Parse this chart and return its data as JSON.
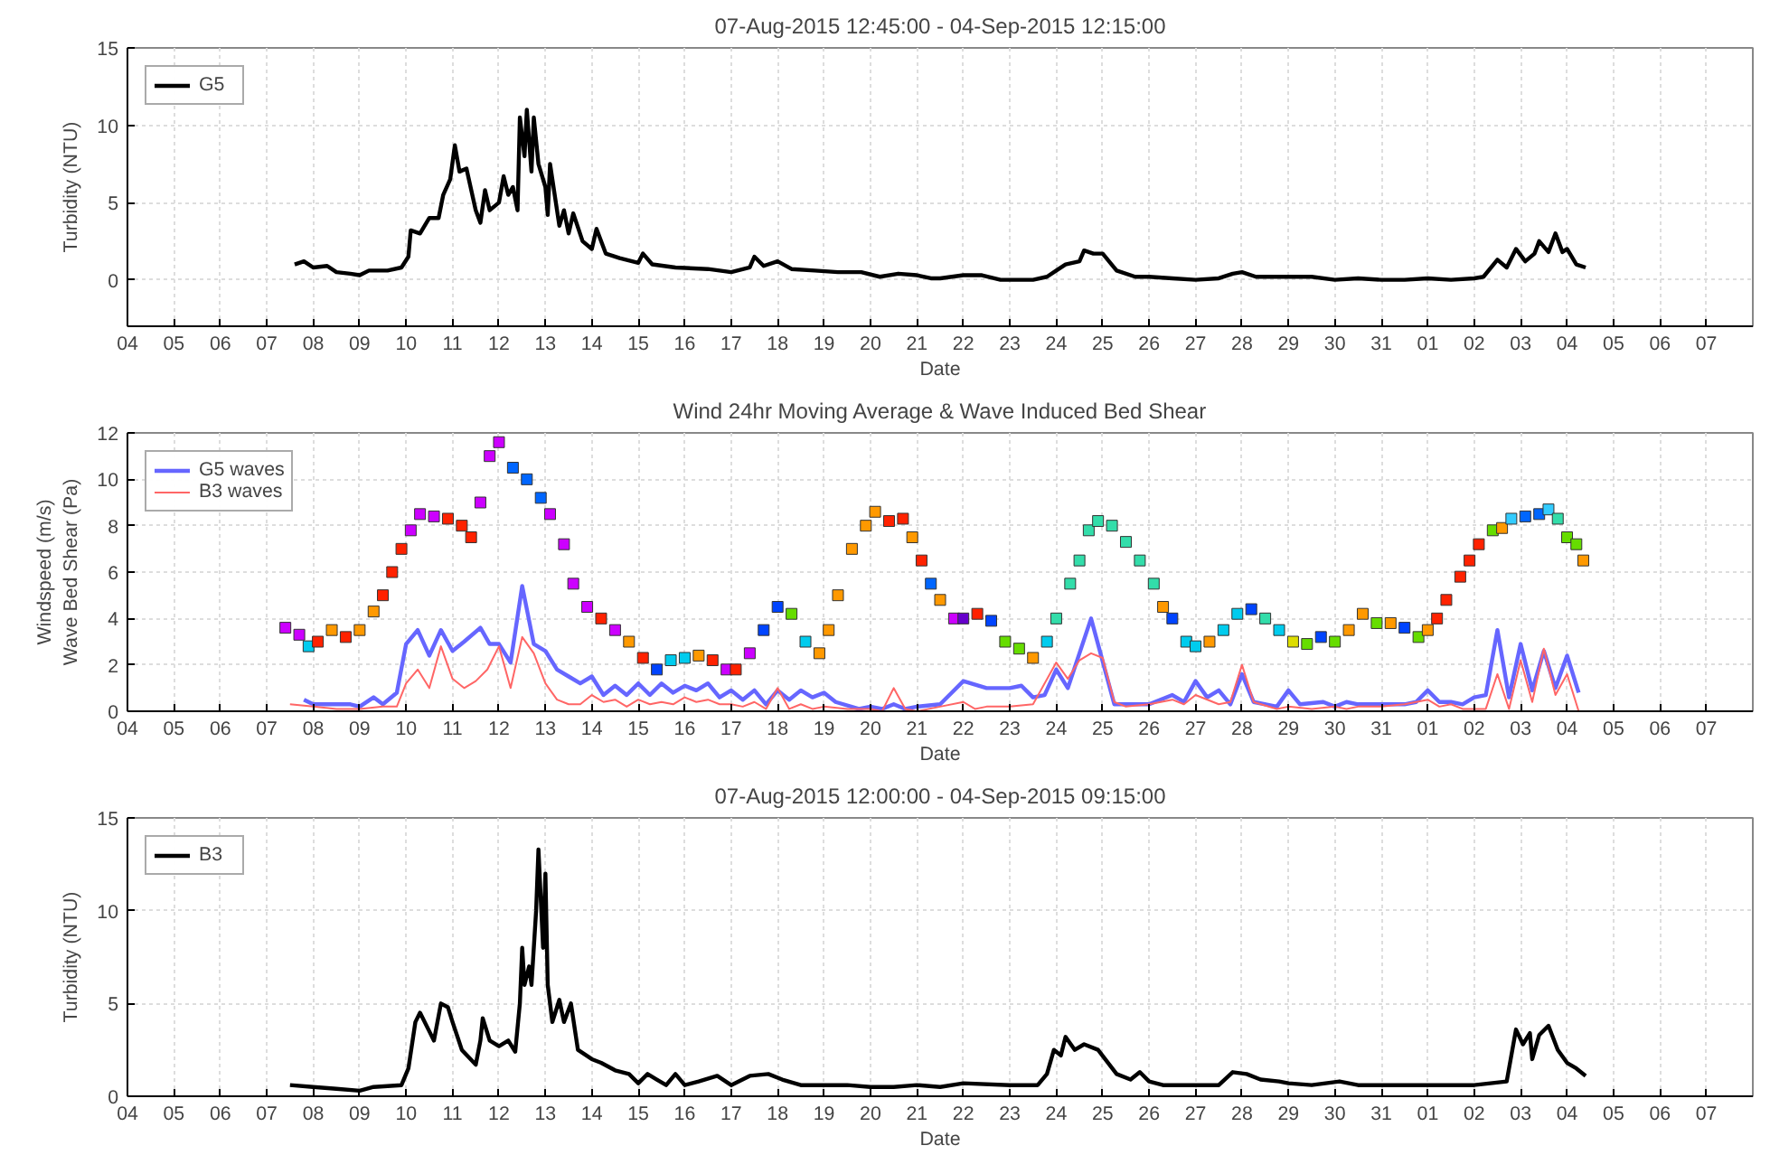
{
  "chart_data": [
    {
      "type": "line",
      "title": "07-Aug-2015 12:45:00 - 04-Sep-2015 12:15:00",
      "xlabel": "Date",
      "ylabel": "Turbidity (NTU)",
      "xlim": [
        "2015-08-04",
        "2015-09-08"
      ],
      "ylim": [
        -3,
        15
      ],
      "yticks": [
        0,
        5,
        10,
        15
      ],
      "xticks": [
        {
          "value": "2015-08-04",
          "label": "04"
        },
        {
          "value": "2015-08-05",
          "label": "05"
        },
        {
          "value": "2015-08-06",
          "label": "06"
        },
        {
          "value": "2015-08-07",
          "label": "07"
        },
        {
          "value": "2015-08-08",
          "label": "08"
        },
        {
          "value": "2015-08-09",
          "label": "09"
        },
        {
          "value": "2015-08-10",
          "label": "10"
        },
        {
          "value": "2015-08-11",
          "label": "11"
        },
        {
          "value": "2015-08-12",
          "label": "12"
        },
        {
          "value": "2015-08-13",
          "label": "13"
        },
        {
          "value": "2015-08-14",
          "label": "14"
        },
        {
          "value": "2015-08-15",
          "label": "15"
        },
        {
          "value": "2015-08-16",
          "label": "16"
        },
        {
          "value": "2015-08-17",
          "label": "17"
        },
        {
          "value": "2015-08-18",
          "label": "18"
        },
        {
          "value": "2015-08-19",
          "label": "19"
        },
        {
          "value": "2015-08-20",
          "label": "20"
        },
        {
          "value": "2015-08-21",
          "label": "21"
        },
        {
          "value": "2015-08-22",
          "label": "22"
        },
        {
          "value": "2015-08-23",
          "label": "23"
        },
        {
          "value": "2015-08-24",
          "label": "24"
        },
        {
          "value": "2015-08-25",
          "label": "25"
        },
        {
          "value": "2015-08-26",
          "label": "26"
        },
        {
          "value": "2015-08-27",
          "label": "27"
        },
        {
          "value": "2015-08-28",
          "label": "28"
        },
        {
          "value": "2015-08-29",
          "label": "29"
        },
        {
          "value": "2015-08-30",
          "label": "30"
        },
        {
          "value": "2015-08-31",
          "label": "31"
        },
        {
          "value": "2015-09-01",
          "label": "01"
        },
        {
          "value": "2015-09-02",
          "label": "02"
        },
        {
          "value": "2015-09-03",
          "label": "03"
        },
        {
          "value": "2015-09-04",
          "label": "04"
        },
        {
          "value": "2015-09-05",
          "label": "05"
        },
        {
          "value": "2015-09-06",
          "label": "06"
        },
        {
          "value": "2015-09-07",
          "label": "07"
        }
      ],
      "grid": true,
      "legend": "top left",
      "series": [
        {
          "name": "G5",
          "color": "#000000",
          "x": [
            "2015-08-07T14:24",
            "2015-08-07T19:12",
            "2015-08-08T00:00",
            "2015-08-08T07:12",
            "2015-08-08T12:00",
            "2015-08-08T19:12",
            "2015-08-09T00:00",
            "2015-08-09T04:48",
            "2015-08-09T14:24",
            "2015-08-09T21:36",
            "2015-08-10T01:12",
            "2015-08-10T02:24",
            "2015-08-10T07:12",
            "2015-08-10T12:00",
            "2015-08-10T16:48",
            "2015-08-10T19:12",
            "2015-08-10T22:48",
            "2015-08-11T01:12",
            "2015-08-11T03:36",
            "2015-08-11T07:12",
            "2015-08-11T12:00",
            "2015-08-11T14:24",
            "2015-08-11T16:48",
            "2015-08-11T19:12",
            "2015-08-12T00:00",
            "2015-08-12T02:24",
            "2015-08-12T04:48",
            "2015-08-12T07:12",
            "2015-08-12T09:36",
            "2015-08-12T10:48",
            "2015-08-12T13:12",
            "2015-08-12T14:24",
            "2015-08-12T16:48",
            "2015-08-12T18:00",
            "2015-08-12T20:24",
            "2015-08-13T00:00",
            "2015-08-13T01:12",
            "2015-08-13T02:24",
            "2015-08-13T07:12",
            "2015-08-13T09:36",
            "2015-08-13T12:00",
            "2015-08-13T14:24",
            "2015-08-13T19:12",
            "2015-08-14T00:00",
            "2015-08-14T02:24",
            "2015-08-14T07:12",
            "2015-08-14T14:24",
            "2015-08-15T00:00",
            "2015-08-15T02:24",
            "2015-08-15T07:12",
            "2015-08-15T19:12",
            "2015-08-16T12:00",
            "2015-08-17T00:00",
            "2015-08-17T09:36",
            "2015-08-17T12:00",
            "2015-08-17T16:48",
            "2015-08-18T00:00",
            "2015-08-18T07:12",
            "2015-08-18T19:12",
            "2015-08-19T07:12",
            "2015-08-19T19:12",
            "2015-08-20T04:48",
            "2015-08-20T14:24",
            "2015-08-21T00:00",
            "2015-08-21T07:12",
            "2015-08-21T12:00",
            "2015-08-22T00:00",
            "2015-08-22T09:36",
            "2015-08-22T19:12",
            "2015-08-23T12:00",
            "2015-08-23T19:12",
            "2015-08-24T00:00",
            "2015-08-24T04:48",
            "2015-08-24T12:00",
            "2015-08-24T14:24",
            "2015-08-24T19:12",
            "2015-08-25T00:00",
            "2015-08-25T07:12",
            "2015-08-25T16:48",
            "2015-08-26T00:00",
            "2015-08-26T12:00",
            "2015-08-27T00:00",
            "2015-08-27T12:00",
            "2015-08-27T19:12",
            "2015-08-28T00:00",
            "2015-08-28T07:12",
            "2015-08-29T00:00",
            "2015-08-29T12:00",
            "2015-08-30T00:00",
            "2015-08-30T12:00",
            "2015-08-31T00:00",
            "2015-08-31T12:00",
            "2015-09-01T00:00",
            "2015-09-01T12:00",
            "2015-09-02T00:00",
            "2015-09-02T04:48",
            "2015-09-02T12:00",
            "2015-09-02T16:48",
            "2015-09-02T21:36",
            "2015-09-03T02:24",
            "2015-09-03T07:12",
            "2015-09-03T09:36",
            "2015-09-03T14:24",
            "2015-09-03T18:00",
            "2015-09-03T21:36",
            "2015-09-04T00:00",
            "2015-09-04T04:48",
            "2015-09-04T09:36"
          ],
          "values": [
            1.0,
            1.2,
            0.8,
            0.9,
            0.5,
            0.4,
            0.3,
            0.6,
            0.6,
            0.8,
            1.5,
            3.2,
            3.0,
            4.0,
            4.0,
            5.5,
            6.5,
            8.7,
            7.0,
            7.2,
            4.5,
            3.7,
            5.8,
            4.5,
            5.0,
            6.7,
            5.5,
            6.0,
            4.5,
            10.5,
            8.0,
            11.0,
            7.0,
            10.5,
            7.5,
            6.0,
            4.2,
            7.5,
            3.5,
            4.5,
            3.0,
            4.3,
            2.5,
            2.0,
            3.3,
            1.7,
            1.4,
            1.1,
            1.7,
            1.0,
            0.8,
            0.7,
            0.5,
            0.8,
            1.5,
            0.9,
            1.2,
            0.7,
            0.6,
            0.5,
            0.5,
            0.2,
            0.4,
            0.3,
            0.1,
            0.1,
            0.3,
            0.3,
            0.0,
            0.0,
            0.2,
            0.6,
            1.0,
            1.2,
            1.9,
            1.7,
            1.7,
            0.6,
            0.2,
            0.2,
            0.1,
            0.0,
            0.1,
            0.4,
            0.5,
            0.2,
            0.2,
            0.2,
            0.0,
            0.1,
            0.0,
            0.0,
            0.1,
            0.0,
            0.1,
            0.2,
            1.3,
            0.8,
            2.0,
            1.2,
            1.7,
            2.5,
            1.8,
            3.0,
            1.8,
            2.0,
            1.0,
            0.8
          ]
        }
      ]
    },
    {
      "type": "line",
      "title": "Wind 24hr Moving Average & Wave Induced Bed Shear",
      "xlabel": "Date",
      "ylabel": "Windspeed (m/s)\nWave Bed Shear (Pa)",
      "xlim": [
        "2015-08-04",
        "2015-09-08"
      ],
      "ylim": [
        0,
        12
      ],
      "yticks": [
        0,
        2,
        4,
        6,
        8,
        10,
        12
      ],
      "xticks": [
        {
          "value": "2015-08-04",
          "label": "04"
        },
        {
          "value": "2015-08-05",
          "label": "05"
        },
        {
          "value": "2015-08-06",
          "label": "06"
        },
        {
          "value": "2015-08-07",
          "label": "07"
        },
        {
          "value": "2015-08-08",
          "label": "08"
        },
        {
          "value": "2015-08-09",
          "label": "09"
        },
        {
          "value": "2015-08-10",
          "label": "10"
        },
        {
          "value": "2015-08-11",
          "label": "11"
        },
        {
          "value": "2015-08-12",
          "label": "12"
        },
        {
          "value": "2015-08-13",
          "label": "13"
        },
        {
          "value": "2015-08-14",
          "label": "14"
        },
        {
          "value": "2015-08-15",
          "label": "15"
        },
        {
          "value": "2015-08-16",
          "label": "16"
        },
        {
          "value": "2015-08-17",
          "label": "17"
        },
        {
          "value": "2015-08-18",
          "label": "18"
        },
        {
          "value": "2015-08-19",
          "label": "19"
        },
        {
          "value": "2015-08-20",
          "label": "20"
        },
        {
          "value": "2015-08-21",
          "label": "21"
        },
        {
          "value": "2015-08-22",
          "label": "22"
        },
        {
          "value": "2015-08-23",
          "label": "23"
        },
        {
          "value": "2015-08-24",
          "label": "24"
        },
        {
          "value": "2015-08-25",
          "label": "25"
        },
        {
          "value": "2015-08-26",
          "label": "26"
        },
        {
          "value": "2015-08-27",
          "label": "27"
        },
        {
          "value": "2015-08-28",
          "label": "28"
        },
        {
          "value": "2015-08-29",
          "label": "29"
        },
        {
          "value": "2015-08-30",
          "label": "30"
        },
        {
          "value": "2015-08-31",
          "label": "31"
        },
        {
          "value": "2015-09-01",
          "label": "01"
        },
        {
          "value": "2015-09-02",
          "label": "02"
        },
        {
          "value": "2015-09-03",
          "label": "03"
        },
        {
          "value": "2015-09-04",
          "label": "04"
        },
        {
          "value": "2015-09-05",
          "label": "05"
        },
        {
          "value": "2015-09-06",
          "label": "06"
        },
        {
          "value": "2015-09-07",
          "label": "07"
        }
      ],
      "grid": true,
      "legend": "top left",
      "series": [
        {
          "name": "G5 waves",
          "color": "#6666ff",
          "x": [
            "2015-08-07T19:12",
            "2015-08-08T00:00",
            "2015-08-08T12:00",
            "2015-08-08T19:12",
            "2015-08-09T00:00",
            "2015-08-09T07:12",
            "2015-08-09T12:00",
            "2015-08-09T19:12",
            "2015-08-10T00:00",
            "2015-08-10T06:00",
            "2015-08-10T12:00",
            "2015-08-10T18:00",
            "2015-08-11T00:00",
            "2015-08-11T06:00",
            "2015-08-11T14:24",
            "2015-08-11T19:12",
            "2015-08-12T00:00",
            "2015-08-12T06:00",
            "2015-08-12T12:00",
            "2015-08-12T18:00",
            "2015-08-13T00:00",
            "2015-08-13T06:00",
            "2015-08-13T12:00",
            "2015-08-13T18:00",
            "2015-08-14T00:00",
            "2015-08-14T06:00",
            "2015-08-14T12:00",
            "2015-08-14T18:00",
            "2015-08-15T00:00",
            "2015-08-15T06:00",
            "2015-08-15T12:00",
            "2015-08-15T18:00",
            "2015-08-16T00:00",
            "2015-08-16T06:00",
            "2015-08-16T12:00",
            "2015-08-16T18:00",
            "2015-08-17T00:00",
            "2015-08-17T06:00",
            "2015-08-17T12:00",
            "2015-08-17T18:00",
            "2015-08-18T00:00",
            "2015-08-18T06:00",
            "2015-08-18T12:00",
            "2015-08-18T18:00",
            "2015-08-19T00:00",
            "2015-08-19T06:00",
            "2015-08-19T18:00",
            "2015-08-20T00:00",
            "2015-08-20T06:00",
            "2015-08-20T12:00",
            "2015-08-20T18:00",
            "2015-08-21T00:00",
            "2015-08-21T12:00",
            "2015-08-22T00:00",
            "2015-08-22T12:00",
            "2015-08-23T00:00",
            "2015-08-23T06:00",
            "2015-08-23T12:00",
            "2015-08-23T18:00",
            "2015-08-24T00:00",
            "2015-08-24T06:00",
            "2015-08-24T18:00",
            "2015-08-25T06:00",
            "2015-08-25T12:00",
            "2015-08-26T00:00",
            "2015-08-26T12:00",
            "2015-08-26T18:00",
            "2015-08-27T00:00",
            "2015-08-27T06:00",
            "2015-08-27T12:00",
            "2015-08-27T18:00",
            "2015-08-28T00:00",
            "2015-08-28T06:00",
            "2015-08-28T18:00",
            "2015-08-29T00:00",
            "2015-08-29T06:00",
            "2015-08-29T18:00",
            "2015-08-30T00:00",
            "2015-08-30T06:00",
            "2015-08-30T12:00",
            "2015-08-31T00:00",
            "2015-08-31T12:00",
            "2015-08-31T18:00",
            "2015-09-01T00:00",
            "2015-09-01T06:00",
            "2015-09-01T12:00",
            "2015-09-01T18:00",
            "2015-09-02T00:00",
            "2015-09-02T06:00",
            "2015-09-02T12:00",
            "2015-09-02T18:00",
            "2015-09-03T00:00",
            "2015-09-03T06:00",
            "2015-09-03T12:00",
            "2015-09-03T18:00",
            "2015-09-04T00:00",
            "2015-09-04T06:00"
          ],
          "values": [
            0.5,
            0.3,
            0.3,
            0.3,
            0.2,
            0.6,
            0.3,
            0.8,
            2.9,
            3.5,
            2.4,
            3.5,
            2.6,
            3.0,
            3.6,
            2.9,
            2.9,
            2.1,
            5.4,
            2.9,
            2.6,
            1.8,
            1.5,
            1.2,
            1.5,
            0.7,
            1.1,
            0.7,
            1.2,
            0.7,
            1.2,
            0.8,
            1.1,
            0.9,
            1.2,
            0.6,
            0.9,
            0.5,
            0.9,
            0.3,
            0.9,
            0.5,
            0.9,
            0.6,
            0.8,
            0.4,
            0.1,
            0.2,
            0.1,
            0.3,
            0.1,
            0.2,
            0.3,
            1.3,
            1.0,
            1.0,
            1.1,
            0.6,
            0.7,
            1.8,
            1.0,
            4.0,
            0.3,
            0.3,
            0.3,
            0.7,
            0.4,
            1.3,
            0.6,
            0.9,
            0.3,
            1.6,
            0.4,
            0.2,
            0.9,
            0.3,
            0.4,
            0.2,
            0.4,
            0.3,
            0.3,
            0.3,
            0.4,
            0.9,
            0.4,
            0.4,
            0.3,
            0.6,
            0.7,
            3.5,
            0.6,
            2.9,
            0.9,
            2.6,
            1.0,
            2.4,
            0.8
          ]
        },
        {
          "name": "B3 waves",
          "color": "#ff6666",
          "x": [
            "2015-08-07T12:00",
            "2015-08-08T00:00",
            "2015-08-08T12:00",
            "2015-08-09T00:00",
            "2015-08-09T12:00",
            "2015-08-09T19:12",
            "2015-08-10T00:00",
            "2015-08-10T06:00",
            "2015-08-10T12:00",
            "2015-08-10T18:00",
            "2015-08-11T00:00",
            "2015-08-11T06:00",
            "2015-08-11T12:00",
            "2015-08-11T18:00",
            "2015-08-12T00:00",
            "2015-08-12T06:00",
            "2015-08-12T12:00",
            "2015-08-12T18:00",
            "2015-08-13T00:00",
            "2015-08-13T06:00",
            "2015-08-13T12:00",
            "2015-08-13T18:00",
            "2015-08-14T00:00",
            "2015-08-14T06:00",
            "2015-08-14T12:00",
            "2015-08-14T18:00",
            "2015-08-15T00:00",
            "2015-08-15T06:00",
            "2015-08-15T12:00",
            "2015-08-15T18:00",
            "2015-08-16T00:00",
            "2015-08-16T06:00",
            "2015-08-16T12:00",
            "2015-08-16T18:00",
            "2015-08-17T00:00",
            "2015-08-17T06:00",
            "2015-08-17T12:00",
            "2015-08-17T18:00",
            "2015-08-18T00:00",
            "2015-08-18T06:00",
            "2015-08-18T12:00",
            "2015-08-18T18:00",
            "2015-08-19T00:00",
            "2015-08-19T12:00",
            "2015-08-20T00:00",
            "2015-08-20T06:00",
            "2015-08-20T12:00",
            "2015-08-20T18:00",
            "2015-08-21T00:00",
            "2015-08-21T12:00",
            "2015-08-22T00:00",
            "2015-08-22T06:00",
            "2015-08-22T12:00",
            "2015-08-23T00:00",
            "2015-08-23T12:00",
            "2015-08-24T00:00",
            "2015-08-24T06:00",
            "2015-08-24T12:00",
            "2015-08-24T18:00",
            "2015-08-25T00:00",
            "2015-08-25T06:00",
            "2015-08-25T12:00",
            "2015-08-26T00:00",
            "2015-08-26T12:00",
            "2015-08-26T18:00",
            "2015-08-27T00:00",
            "2015-08-27T12:00",
            "2015-08-27T18:00",
            "2015-08-28T00:00",
            "2015-08-28T06:00",
            "2015-08-28T18:00",
            "2015-08-29T00:00",
            "2015-08-29T12:00",
            "2015-08-30T00:00",
            "2015-08-30T06:00",
            "2015-08-30T12:00",
            "2015-08-31T00:00",
            "2015-08-31T12:00",
            "2015-09-01T00:00",
            "2015-09-01T06:00",
            "2015-09-01T12:00",
            "2015-09-01T18:00",
            "2015-09-02T00:00",
            "2015-09-02T06:00",
            "2015-09-02T12:00",
            "2015-09-02T18:00",
            "2015-09-03T00:00",
            "2015-09-03T06:00",
            "2015-09-03T12:00",
            "2015-09-03T18:00",
            "2015-09-04T00:00",
            "2015-09-04T06:00"
          ],
          "values": [
            0.3,
            0.2,
            0.1,
            0.1,
            0.2,
            0.2,
            1.2,
            1.8,
            1.0,
            2.8,
            1.4,
            1.0,
            1.3,
            1.8,
            2.8,
            1.0,
            3.2,
            2.5,
            1.2,
            0.5,
            0.3,
            0.3,
            0.7,
            0.4,
            0.5,
            0.2,
            0.5,
            0.3,
            0.4,
            0.3,
            0.6,
            0.4,
            0.5,
            0.3,
            0.3,
            0.2,
            0.4,
            0.1,
            1.0,
            0.1,
            0.3,
            0.1,
            0.2,
            0.1,
            0.1,
            0.0,
            1.0,
            0.1,
            0.0,
            0.2,
            0.4,
            0.1,
            0.2,
            0.2,
            0.3,
            2.1,
            1.4,
            2.2,
            2.5,
            2.3,
            0.4,
            0.2,
            0.3,
            0.5,
            0.3,
            0.7,
            0.3,
            0.4,
            2.0,
            0.4,
            0.1,
            0.2,
            0.1,
            0.2,
            0.1,
            0.2,
            0.2,
            0.3,
            0.5,
            0.2,
            0.3,
            0.1,
            0.1,
            0.1,
            1.6,
            0.1,
            2.2,
            0.4,
            2.7,
            0.7,
            1.6,
            0.0
          ]
        },
        {
          "type": "scatter",
          "marker": "square",
          "x": [
            "2015-08-07T09:36",
            "2015-08-07T16:48",
            "2015-08-07T21:36",
            "2015-08-08T02:24",
            "2015-08-08T09:36",
            "2015-08-08T16:48",
            "2015-08-09T00:00",
            "2015-08-09T07:12",
            "2015-08-09T12:00",
            "2015-08-09T16:48",
            "2015-08-09T21:36",
            "2015-08-10T02:24",
            "2015-08-10T07:12",
            "2015-08-10T14:24",
            "2015-08-10T21:36",
            "2015-08-11T04:48",
            "2015-08-11T09:36",
            "2015-08-11T14:24",
            "2015-08-11T19:12",
            "2015-08-12T00:00",
            "2015-08-12T07:12",
            "2015-08-12T14:24",
            "2015-08-12T21:36",
            "2015-08-13T02:24",
            "2015-08-13T09:36",
            "2015-08-13T14:24",
            "2015-08-13T21:36",
            "2015-08-14T04:48",
            "2015-08-14T12:00",
            "2015-08-14T19:12",
            "2015-08-15T02:24",
            "2015-08-15T09:36",
            "2015-08-15T16:48",
            "2015-08-16T00:00",
            "2015-08-16T07:12",
            "2015-08-16T14:24",
            "2015-08-16T21:36",
            "2015-08-17T02:24",
            "2015-08-17T09:36",
            "2015-08-17T16:48",
            "2015-08-18T00:00",
            "2015-08-18T07:12",
            "2015-08-18T14:24",
            "2015-08-18T21:36",
            "2015-08-19T02:24",
            "2015-08-19T07:12",
            "2015-08-19T14:24",
            "2015-08-19T21:36",
            "2015-08-20T02:24",
            "2015-08-20T09:36",
            "2015-08-20T16:48",
            "2015-08-20T21:36",
            "2015-08-21T02:24",
            "2015-08-21T07:12",
            "2015-08-21T12:00",
            "2015-08-21T19:12",
            "2015-08-22T00:00",
            "2015-08-22T07:12",
            "2015-08-22T14:24",
            "2015-08-22T21:36",
            "2015-08-23T04:48",
            "2015-08-23T12:00",
            "2015-08-23T19:12",
            "2015-08-24T00:00",
            "2015-08-24T07:12",
            "2015-08-24T12:00",
            "2015-08-24T16:48",
            "2015-08-24T21:36",
            "2015-08-25T04:48",
            "2015-08-25T12:00",
            "2015-08-25T19:12",
            "2015-08-26T02:24",
            "2015-08-26T07:12",
            "2015-08-26T12:00",
            "2015-08-26T19:12",
            "2015-08-27T00:00",
            "2015-08-27T07:12",
            "2015-08-27T14:24",
            "2015-08-27T21:36",
            "2015-08-28T04:48",
            "2015-08-28T12:00",
            "2015-08-28T19:12",
            "2015-08-29T02:24",
            "2015-08-29T09:36",
            "2015-08-29T16:48",
            "2015-08-30T00:00",
            "2015-08-30T07:12",
            "2015-08-30T14:24",
            "2015-08-30T21:36",
            "2015-08-31T04:48",
            "2015-08-31T12:00",
            "2015-08-31T19:12",
            "2015-09-01T00:00",
            "2015-09-01T04:48",
            "2015-09-01T09:36",
            "2015-09-01T16:48",
            "2015-09-01T21:36",
            "2015-09-02T02:24",
            "2015-09-02T09:36",
            "2015-09-02T14:24",
            "2015-09-02T19:12",
            "2015-09-03T02:24",
            "2015-09-03T09:36",
            "2015-09-03T14:24",
            "2015-09-03T19:12",
            "2015-09-04T00:00",
            "2015-09-04T04:48",
            "2015-09-04T08:24"
          ],
          "values": [
            3.6,
            3.3,
            2.8,
            3.0,
            3.5,
            3.2,
            3.5,
            4.3,
            5.0,
            6.0,
            7.0,
            7.8,
            8.5,
            8.4,
            8.3,
            8.0,
            7.5,
            9.0,
            11.0,
            11.6,
            10.5,
            10.0,
            9.2,
            8.5,
            7.2,
            5.5,
            4.5,
            4.0,
            3.5,
            3.0,
            2.3,
            1.8,
            2.2,
            2.3,
            2.4,
            2.2,
            1.8,
            1.8,
            2.5,
            3.5,
            4.5,
            4.2,
            3.0,
            2.5,
            3.5,
            5.0,
            7.0,
            8.0,
            8.6,
            8.2,
            8.3,
            7.5,
            6.5,
            5.5,
            4.8,
            4.0,
            4.0,
            4.2,
            3.9,
            3.0,
            2.7,
            2.3,
            3.0,
            4.0,
            5.5,
            6.5,
            7.8,
            8.2,
            8.0,
            7.3,
            6.5,
            5.5,
            4.5,
            4.0,
            3.0,
            2.8,
            3.0,
            3.5,
            4.2,
            4.4,
            4.0,
            3.5,
            3.0,
            2.9,
            3.2,
            3.0,
            3.5,
            4.2,
            3.8,
            3.8,
            3.6,
            3.2,
            3.5,
            4.0,
            4.8,
            5.8,
            6.5,
            7.2,
            7.8,
            7.9,
            8.3,
            8.4,
            8.5,
            8.7,
            8.3,
            7.5,
            7.2,
            6.5
          ],
          "colors": [
            "#cc00ff",
            "#cc00ff",
            "#00ccee",
            "#ff2200",
            "#ff9900",
            "#ff2200",
            "#ff9900",
            "#ff9900",
            "#ff2200",
            "#ff2200",
            "#ff2200",
            "#cc00ff",
            "#cc00ff",
            "#cc00ff",
            "#ff2200",
            "#ff2200",
            "#ff2200",
            "#cc00ff",
            "#cc00ff",
            "#cc00ff",
            "#0066ff",
            "#0066ff",
            "#0066ff",
            "#cc00ff",
            "#cc00ff",
            "#cc00ff",
            "#cc00ff",
            "#ff2200",
            "#cc00ff",
            "#ff9900",
            "#ff2200",
            "#0044ff",
            "#00ccee",
            "#00ccee",
            "#ff9900",
            "#ff2200",
            "#cc00ff",
            "#ff2200",
            "#cc00ff",
            "#0044ff",
            "#0044ff",
            "#66dd00",
            "#00ccee",
            "#ff9900",
            "#ff9900",
            "#ff9900",
            "#ff9900",
            "#ff9900",
            "#ff9900",
            "#ff2200",
            "#ff2200",
            "#ff9900",
            "#ff2200",
            "#0066ff",
            "#ff9900",
            "#cc00ff",
            "#6600cc",
            "#ff2200",
            "#0044ff",
            "#66dd00",
            "#66dd00",
            "#ff9900",
            "#00ccee",
            "#33ddaa",
            "#33ddaa",
            "#33ddaa",
            "#33ddaa",
            "#33ddaa",
            "#33ddaa",
            "#33ddaa",
            "#33ddaa",
            "#33ddaa",
            "#ff9900",
            "#0044ff",
            "#00ccee",
            "#00ccee",
            "#ff9900",
            "#00ccee",
            "#00ccee",
            "#0044ff",
            "#33ddaa",
            "#00ccee",
            "#dddd00",
            "#66dd00",
            "#0044ff",
            "#66dd00",
            "#ff9900",
            "#ff9900",
            "#66dd00",
            "#ff9900",
            "#0044ff",
            "#66dd00",
            "#ff9900",
            "#ff2200",
            "#ff2200",
            "#ff2200",
            "#ff2200",
            "#ff2200",
            "#66dd00",
            "#ff9900",
            "#33ccff",
            "#0066ff",
            "#0066ff",
            "#33ccff",
            "#33ddaa",
            "#66dd00",
            "#66dd00",
            "#ff9900"
          ]
        }
      ]
    },
    {
      "type": "line",
      "title": "07-Aug-2015 12:00:00 - 04-Sep-2015 09:15:00",
      "xlabel": "Date",
      "ylabel": "Turbidity (NTU)",
      "xlim": [
        "2015-08-04",
        "2015-09-08"
      ],
      "ylim": [
        0,
        15
      ],
      "yticks": [
        0,
        5,
        10,
        15
      ],
      "xticks": [
        {
          "value": "2015-08-04",
          "label": "04"
        },
        {
          "value": "2015-08-05",
          "label": "05"
        },
        {
          "value": "2015-08-06",
          "label": "06"
        },
        {
          "value": "2015-08-07",
          "label": "07"
        },
        {
          "value": "2015-08-08",
          "label": "08"
        },
        {
          "value": "2015-08-09",
          "label": "09"
        },
        {
          "value": "2015-08-10",
          "label": "10"
        },
        {
          "value": "2015-08-11",
          "label": "11"
        },
        {
          "value": "2015-08-12",
          "label": "12"
        },
        {
          "value": "2015-08-13",
          "label": "13"
        },
        {
          "value": "2015-08-14",
          "label": "14"
        },
        {
          "value": "2015-08-15",
          "label": "15"
        },
        {
          "value": "2015-08-16",
          "label": "16"
        },
        {
          "value": "2015-08-17",
          "label": "17"
        },
        {
          "value": "2015-08-18",
          "label": "18"
        },
        {
          "value": "2015-08-19",
          "label": "19"
        },
        {
          "value": "2015-08-20",
          "label": "20"
        },
        {
          "value": "2015-08-21",
          "label": "21"
        },
        {
          "value": "2015-08-22",
          "label": "22"
        },
        {
          "value": "2015-08-23",
          "label": "23"
        },
        {
          "value": "2015-08-24",
          "label": "24"
        },
        {
          "value": "2015-08-25",
          "label": "25"
        },
        {
          "value": "2015-08-26",
          "label": "26"
        },
        {
          "value": "2015-08-27",
          "label": "27"
        },
        {
          "value": "2015-08-28",
          "label": "28"
        },
        {
          "value": "2015-08-29",
          "label": "29"
        },
        {
          "value": "2015-08-30",
          "label": "30"
        },
        {
          "value": "2015-08-31",
          "label": "31"
        },
        {
          "value": "2015-09-01",
          "label": "01"
        },
        {
          "value": "2015-09-02",
          "label": "02"
        },
        {
          "value": "2015-09-03",
          "label": "03"
        },
        {
          "value": "2015-09-04",
          "label": "04"
        },
        {
          "value": "2015-09-05",
          "label": "05"
        },
        {
          "value": "2015-09-06",
          "label": "06"
        },
        {
          "value": "2015-09-07",
          "label": "07"
        }
      ],
      "grid": true,
      "legend": "top left",
      "series": [
        {
          "name": "B3",
          "color": "#000000",
          "x": [
            "2015-08-07T12:00",
            "2015-08-08T00:00",
            "2015-08-08T12:00",
            "2015-08-09T00:00",
            "2015-08-09T07:12",
            "2015-08-09T21:36",
            "2015-08-10T01:12",
            "2015-08-10T04:48",
            "2015-08-10T07:12",
            "2015-08-10T12:00",
            "2015-08-10T14:24",
            "2015-08-10T18:00",
            "2015-08-10T21:36",
            "2015-08-11T00:00",
            "2015-08-11T04:48",
            "2015-08-11T12:00",
            "2015-08-11T14:24",
            "2015-08-11T15:36",
            "2015-08-11T19:12",
            "2015-08-12T00:00",
            "2015-08-12T04:48",
            "2015-08-12T08:24",
            "2015-08-12T10:48",
            "2015-08-12T12:00",
            "2015-08-12T13:12",
            "2015-08-12T15:36",
            "2015-08-12T16:48",
            "2015-08-12T19:12",
            "2015-08-12T20:24",
            "2015-08-12T22:48",
            "2015-08-13T00:00",
            "2015-08-13T01:12",
            "2015-08-13T03:36",
            "2015-08-13T07:12",
            "2015-08-13T09:36",
            "2015-08-13T13:12",
            "2015-08-13T16:48",
            "2015-08-14T00:00",
            "2015-08-14T04:48",
            "2015-08-14T12:00",
            "2015-08-14T19:12",
            "2015-08-15T00:00",
            "2015-08-15T04:48",
            "2015-08-15T09:36",
            "2015-08-15T14:24",
            "2015-08-15T19:12",
            "2015-08-16T00:00",
            "2015-08-16T07:12",
            "2015-08-16T16:48",
            "2015-08-17T00:00",
            "2015-08-17T09:36",
            "2015-08-17T19:12",
            "2015-08-18T02:24",
            "2015-08-18T12:00",
            "2015-08-19T00:00",
            "2015-08-19T12:00",
            "2015-08-20T00:00",
            "2015-08-20T12:00",
            "2015-08-21T00:00",
            "2015-08-21T12:00",
            "2015-08-22T00:00",
            "2015-08-23T00:00",
            "2015-08-23T14:24",
            "2015-08-23T19:12",
            "2015-08-23T22:48",
            "2015-08-24T02:24",
            "2015-08-24T04:48",
            "2015-08-24T09:36",
            "2015-08-24T14:24",
            "2015-08-24T21:36",
            "2015-08-25T07:12",
            "2015-08-25T14:24",
            "2015-08-25T19:12",
            "2015-08-26T00:00",
            "2015-08-26T07:12",
            "2015-08-27T00:00",
            "2015-08-27T12:00",
            "2015-08-27T19:12",
            "2015-08-28T02:24",
            "2015-08-28T09:36",
            "2015-08-28T19:12",
            "2015-08-29T00:00",
            "2015-08-29T12:00",
            "2015-08-30T02:24",
            "2015-08-30T12:00",
            "2015-08-31T12:00",
            "2015-09-01T00:00",
            "2015-09-02T00:00",
            "2015-09-02T16:48",
            "2015-09-02T21:36",
            "2015-09-03T01:12",
            "2015-09-03T04:48",
            "2015-09-03T06:00",
            "2015-09-03T09:36",
            "2015-09-03T14:24",
            "2015-09-03T19:12",
            "2015-09-04T00:00",
            "2015-09-04T04:48",
            "2015-09-04T09:36"
          ],
          "values": [
            0.6,
            0.5,
            0.4,
            0.3,
            0.5,
            0.6,
            1.5,
            4.0,
            4.5,
            3.5,
            3.0,
            5.0,
            4.8,
            4.0,
            2.5,
            1.7,
            3.0,
            4.2,
            3.0,
            2.7,
            3.0,
            2.4,
            5.0,
            8.0,
            6.0,
            7.0,
            6.0,
            10.0,
            13.3,
            8.0,
            12.0,
            6.0,
            4.0,
            5.2,
            4.0,
            5.0,
            2.5,
            2.0,
            1.8,
            1.4,
            1.2,
            0.7,
            1.2,
            0.9,
            0.6,
            1.2,
            0.6,
            0.8,
            1.1,
            0.6,
            1.1,
            1.2,
            0.9,
            0.6,
            0.6,
            0.6,
            0.5,
            0.5,
            0.6,
            0.5,
            0.7,
            0.6,
            0.6,
            1.2,
            2.5,
            2.2,
            3.2,
            2.5,
            2.8,
            2.5,
            1.2,
            0.9,
            1.3,
            0.8,
            0.6,
            0.6,
            0.6,
            1.3,
            1.2,
            0.9,
            0.8,
            0.7,
            0.6,
            0.8,
            0.6,
            0.6,
            0.6,
            0.6,
            0.8,
            3.6,
            2.8,
            3.4,
            2.0,
            3.3,
            3.8,
            2.5,
            1.8,
            1.5,
            1.1
          ]
        }
      ]
    }
  ]
}
